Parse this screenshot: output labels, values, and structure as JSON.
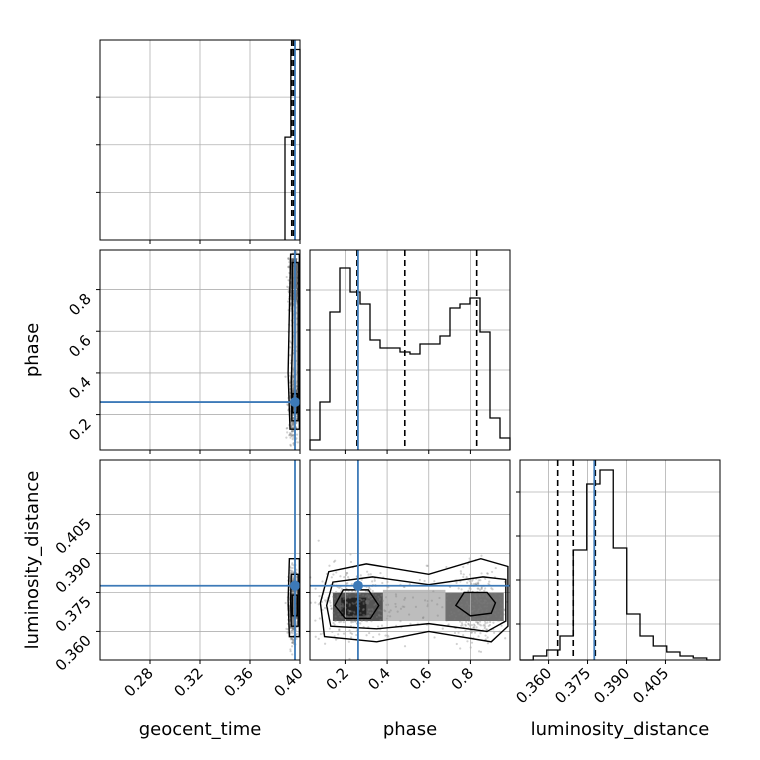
{
  "chart_data": {
    "type": "corner",
    "parameters": [
      "geocent_time",
      "phase",
      "luminosity_distance"
    ],
    "axis_labels": {
      "geocent_time": "geocent_time",
      "phase": "phase",
      "luminosity_distance": "luminosity_distance"
    },
    "ranges": {
      "geocent_time": [
        0.24,
        0.4
      ],
      "phase": [
        0.03,
        0.99
      ],
      "luminosity_distance": [
        0.349,
        0.426
      ]
    },
    "ticks": {
      "geocent_time": [
        "0.28",
        "0.32",
        "0.36",
        "0.40"
      ],
      "phase": [
        "0.2",
        "0.4",
        "0.6",
        "0.8"
      ],
      "luminosity_distance_x": [
        "0.360",
        "0.375",
        "0.390",
        "0.405"
      ],
      "luminosity_distance_y": [
        "0.405",
        "0.390",
        "0.375",
        "0.360"
      ]
    },
    "truths": {
      "geocent_time": 0.396,
      "phase": 0.26,
      "luminosity_distance": 0.3776
    },
    "quantiles": {
      "geocent_time": [
        0.3934,
        0.3948,
        0.3957
      ],
      "phase": [
        0.255,
        0.485,
        0.83
      ],
      "luminosity_distance": [
        0.3635,
        0.3695,
        0.378
      ]
    },
    "marginals": {
      "geocent_time": {
        "edges": [
          0.388,
          0.3927,
          0.3973,
          0.4
        ],
        "counts": [
          0.54,
          1.0,
          1.0
        ]
      },
      "phase": {
        "edges": [
          0.03,
          0.078,
          0.126,
          0.174,
          0.222,
          0.27,
          0.318,
          0.366,
          0.414,
          0.462,
          0.51,
          0.558,
          0.606,
          0.654,
          0.702,
          0.75,
          0.798,
          0.846,
          0.894,
          0.942,
          0.99
        ],
        "counts": [
          0.05,
          0.24,
          0.69,
          0.91,
          0.79,
          0.73,
          0.55,
          0.51,
          0.51,
          0.49,
          0.48,
          0.53,
          0.53,
          0.57,
          0.71,
          0.73,
          0.76,
          0.59,
          0.16,
          0.06
        ]
      },
      "luminosity_distance": {
        "edges": [
          0.349,
          0.3541,
          0.3593,
          0.3644,
          0.3695,
          0.3747,
          0.3798,
          0.3849,
          0.3901,
          0.3952,
          0.4003,
          0.4055,
          0.4106,
          0.4157,
          0.4209,
          0.426
        ],
        "counts": [
          0.0,
          0.02,
          0.05,
          0.12,
          0.55,
          0.88,
          0.95,
          0.56,
          0.23,
          0.12,
          0.07,
          0.04,
          0.02,
          0.01,
          0.0
        ]
      }
    },
    "grid": true
  }
}
